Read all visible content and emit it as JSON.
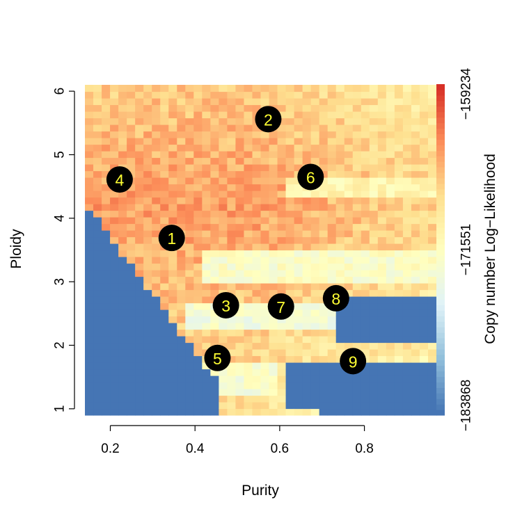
{
  "chart_data": {
    "type": "heatmap",
    "title": "",
    "xlabel": "Purity",
    "ylabel": "Ploidy",
    "xlim": [
      0.14,
      0.97
    ],
    "ylim": [
      0.9,
      6.1
    ],
    "x_ticks": [
      "0.2",
      "0.4",
      "0.6",
      "0.8"
    ],
    "x_tick_values": [
      0.2,
      0.4,
      0.6,
      0.8
    ],
    "y_ticks": [
      "1",
      "2",
      "3",
      "4",
      "5",
      "6"
    ],
    "y_tick_values": [
      1,
      2,
      3,
      4,
      5,
      6
    ],
    "colorbar": {
      "label": "Copy number Log−Likelihood",
      "tick_labels": [
        "−159234",
        "−171551",
        "−183868"
      ],
      "tick_values": [
        -159234,
        -171551,
        -183868
      ],
      "range": [
        -183868,
        -159234
      ],
      "colors_low_to_high": [
        "#4575B4",
        "#91BFDB",
        "#E0F3F8",
        "#FFFFBF",
        "#FEE090",
        "#FC8D59",
        "#D73027"
      ]
    },
    "solutions": [
      {
        "label": "1",
        "purity": 0.345,
        "ploidy": 3.69
      },
      {
        "label": "2",
        "purity": 0.573,
        "ploidy": 5.56
      },
      {
        "label": "3",
        "purity": 0.473,
        "ploidy": 2.63
      },
      {
        "label": "4",
        "purity": 0.222,
        "ploidy": 4.61
      },
      {
        "label": "5",
        "purity": 0.453,
        "ploidy": 1.8
      },
      {
        "label": "6",
        "purity": 0.673,
        "ploidy": 4.65
      },
      {
        "label": "7",
        "purity": 0.603,
        "ploidy": 2.61
      },
      {
        "label": "8",
        "purity": 0.733,
        "ploidy": 2.74
      },
      {
        "label": "9",
        "purity": 0.773,
        "ploidy": 1.75
      }
    ],
    "marker_fill": "#000000",
    "marker_text_color": "#FFFF33",
    "grid": false
  }
}
